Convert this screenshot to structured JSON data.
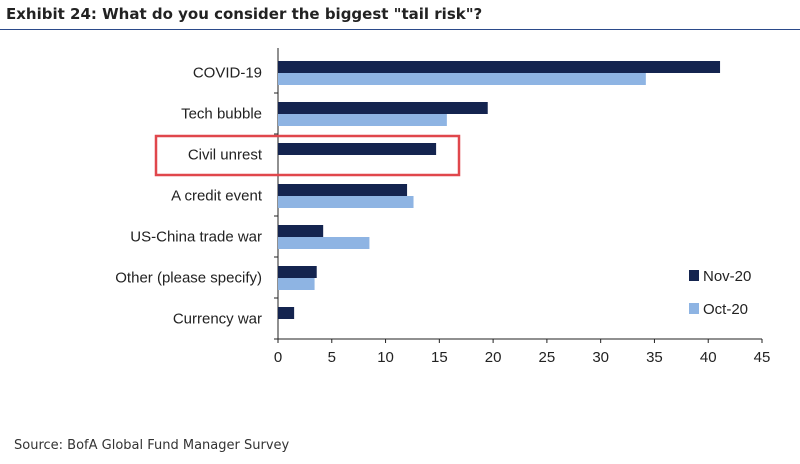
{
  "title": "Exhibit 24: What do you consider the biggest \"tail risk\"?",
  "source": "Source: BofA Global Fund Manager Survey",
  "chart_data": {
    "type": "bar",
    "orientation": "horizontal",
    "categories": [
      "COVID-19",
      "Tech bubble",
      "Civil unrest",
      "A credit event",
      "US-China trade war",
      "Other (please specify)",
      "Currency war"
    ],
    "series": [
      {
        "name": "Nov-20",
        "color": "#14244f",
        "values": [
          41.1,
          19.5,
          14.7,
          12.0,
          4.2,
          3.6,
          1.5
        ]
      },
      {
        "name": "Oct-20",
        "color": "#8eb4e3",
        "values": [
          34.2,
          15.7,
          null,
          12.6,
          8.5,
          3.4,
          null
        ]
      }
    ],
    "xlim": [
      0,
      45
    ],
    "xticks": [
      0,
      5,
      10,
      15,
      20,
      25,
      30,
      35,
      40,
      45
    ],
    "grid": false,
    "legend": "bottom-right",
    "highlight": {
      "category": "Civil unrest",
      "color": "#e0474c"
    }
  }
}
